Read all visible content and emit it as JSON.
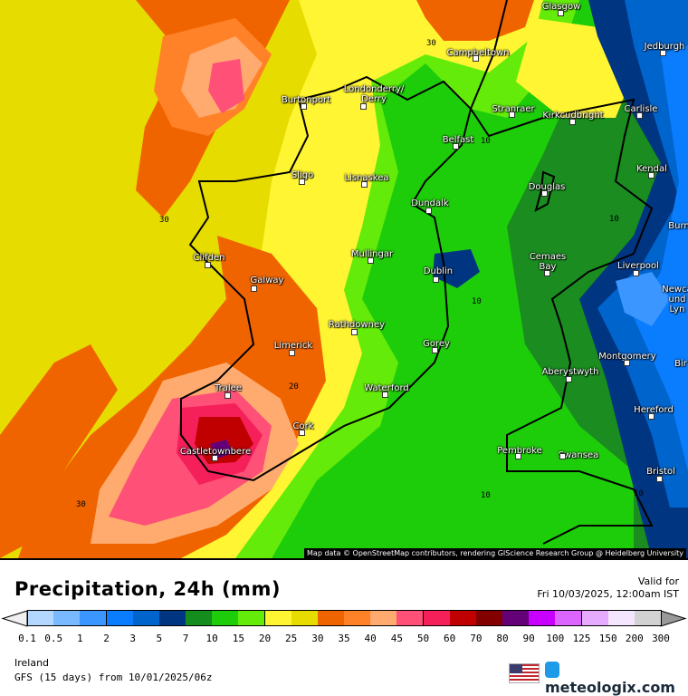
{
  "map": {
    "attribution": "Map data © OpenStreetMap contributors, rendering GIScience Research Group @ Heidelberg University",
    "cities": [
      "Glasgow",
      "Jedburgh",
      "Campbeltown",
      "Burtonport",
      "Londonderry/\nDerry",
      "Stranraer",
      "Kirkcudbright",
      "Carlisle",
      "Belfast",
      "Lisnaskea",
      "Sligo",
      "Douglas",
      "Kendal",
      "Dundalk",
      "Burn",
      "Clifden",
      "Mullingar",
      "Cemaes\nBay",
      "Liverpool",
      "Galway",
      "Dublin",
      "Newca\nund\nLyn",
      "Rathdowney",
      "Limerick",
      "Gorey",
      "Montgomery",
      "Bir",
      "Aberystwyth",
      "Tralee",
      "Waterford",
      "Hereford",
      "Cork",
      "Castletownbere",
      "Pembroke",
      "Swansea",
      "Bristol"
    ],
    "contour_labels": [
      "30",
      "10",
      "30",
      "10",
      "10",
      "20",
      "10",
      "10",
      "30"
    ]
  },
  "footer": {
    "title": "Precipitation, 24h (mm)",
    "valid_label": "Valid for",
    "valid_time": "Fri 10/03/2025, 12:00am IST",
    "region": "Ireland",
    "model": "GFS (15 days) from  10/01/2025/06z",
    "brand": "meteologix.com",
    "flag_icon": "us-flag-icon"
  },
  "legend": {
    "ticks": [
      "0.1",
      "0.5",
      "1",
      "2",
      "3",
      "5",
      "7",
      "10",
      "15",
      "20",
      "25",
      "30",
      "35",
      "40",
      "45",
      "50",
      "60",
      "70",
      "80",
      "90",
      "100",
      "125",
      "150",
      "200",
      "300"
    ],
    "colors": [
      "#b4d7ff",
      "#78b9ff",
      "#3c96ff",
      "#0a7dff",
      "#0064cd",
      "#003582",
      "#148c1e",
      "#1ecd0a",
      "#64eb0a",
      "#fff532",
      "#e6dc00",
      "#f06400",
      "#ff8228",
      "#ffaa6e",
      "#ff5078",
      "#f5205a",
      "#c00000",
      "#820000",
      "#640078",
      "#c800ff",
      "#dc64ff",
      "#e6aaff",
      "#f5e6ff",
      "#d2d2d2"
    ],
    "under_color": "#f0f0f0",
    "over_color": "#999999"
  }
}
